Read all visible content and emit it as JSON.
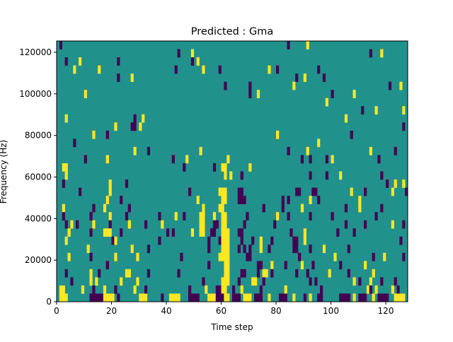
{
  "chart_data": {
    "type": "heatmap",
    "title": "Predicted : Gma",
    "xlabel": "Time step",
    "ylabel": "Frequency (Hz)",
    "xlim": [
      0,
      128
    ],
    "ylim": [
      0,
      125440
    ],
    "n_time": 128,
    "n_freq_bins": 32,
    "bin_hz": 3920,
    "xticks": [
      0,
      20,
      40,
      60,
      80,
      100,
      120
    ],
    "xtick_labels": [
      "0",
      "20",
      "40",
      "60",
      "80",
      "100",
      "120"
    ],
    "yticks": [
      0,
      20000,
      40000,
      60000,
      80000,
      100000,
      120000
    ],
    "ytick_labels": [
      "0",
      "20000",
      "40000",
      "60000",
      "80000",
      "100000",
      "120000"
    ],
    "colormap": {
      "background": "#21918c",
      "high": "#fde725",
      "low": "#440154"
    },
    "background_value": 0,
    "runs_format": "[time_start, time_end, freq_bin, value] value: 1=high, -1=low",
    "runs": [
      [
        1,
        1,
        31,
        -1
      ],
      [
        84,
        84,
        31,
        -1
      ],
      [
        91,
        91,
        31,
        1
      ],
      [
        44,
        44,
        30,
        -1
      ],
      [
        49,
        49,
        30,
        1
      ],
      [
        114,
        114,
        30,
        -1
      ],
      [
        118,
        118,
        30,
        1
      ],
      [
        3,
        3,
        29,
        -1
      ],
      [
        8,
        8,
        29,
        1
      ],
      [
        22,
        22,
        29,
        -1
      ],
      [
        49,
        49,
        29,
        -1
      ],
      [
        51,
        51,
        29,
        1
      ],
      [
        6,
        6,
        28,
        1
      ],
      [
        15,
        15,
        28,
        1
      ],
      [
        43,
        43,
        28,
        -1
      ],
      [
        53,
        53,
        28,
        1
      ],
      [
        59,
        59,
        28,
        -1
      ],
      [
        77,
        77,
        28,
        1
      ],
      [
        80,
        80,
        28,
        -1
      ],
      [
        95,
        95,
        28,
        -1
      ],
      [
        22,
        22,
        27,
        -1
      ],
      [
        27,
        27,
        27,
        1
      ],
      [
        87,
        87,
        27,
        -1
      ],
      [
        90,
        90,
        27,
        1
      ],
      [
        97,
        97,
        27,
        -1
      ],
      [
        61,
        61,
        26,
        -1
      ],
      [
        70,
        70,
        26,
        -1
      ],
      [
        86,
        86,
        26,
        1
      ],
      [
        121,
        121,
        26,
        -1
      ],
      [
        125,
        125,
        26,
        1
      ],
      [
        10,
        10,
        25,
        1
      ],
      [
        70,
        70,
        25,
        -1
      ],
      [
        73,
        73,
        25,
        1
      ],
      [
        100,
        100,
        25,
        -1
      ],
      [
        108,
        108,
        25,
        1
      ],
      [
        98,
        98,
        24,
        1
      ],
      [
        111,
        111,
        23,
        -1
      ],
      [
        116,
        116,
        23,
        1
      ],
      [
        126,
        126,
        23,
        1
      ],
      [
        3,
        3,
        22,
        1
      ],
      [
        28,
        28,
        22,
        -1
      ],
      [
        31,
        31,
        22,
        1
      ],
      [
        105,
        105,
        22,
        1
      ],
      [
        21,
        21,
        21,
        1
      ],
      [
        27,
        28,
        21,
        -1
      ],
      [
        30,
        30,
        21,
        1
      ],
      [
        126,
        126,
        21,
        -1
      ],
      [
        13,
        13,
        20,
        1
      ],
      [
        18,
        18,
        20,
        -1
      ],
      [
        80,
        80,
        20,
        1
      ],
      [
        107,
        107,
        20,
        -1
      ],
      [
        6,
        6,
        19,
        -1
      ],
      [
        95,
        95,
        19,
        1
      ],
      [
        28,
        28,
        18,
        1
      ],
      [
        33,
        33,
        18,
        -1
      ],
      [
        52,
        52,
        18,
        1
      ],
      [
        84,
        84,
        18,
        -1
      ],
      [
        91,
        91,
        18,
        1
      ],
      [
        114,
        114,
        18,
        1
      ],
      [
        123,
        123,
        18,
        -1
      ],
      [
        10,
        10,
        17,
        -1
      ],
      [
        18,
        18,
        17,
        1
      ],
      [
        42,
        42,
        17,
        -1
      ],
      [
        47,
        47,
        17,
        1
      ],
      [
        62,
        62,
        17,
        1
      ],
      [
        89,
        89,
        17,
        -1
      ],
      [
        92,
        92,
        17,
        -1
      ],
      [
        98,
        98,
        17,
        -1
      ],
      [
        100,
        100,
        17,
        1
      ],
      [
        117,
        117,
        17,
        -1
      ],
      [
        2,
        3,
        16,
        1
      ],
      [
        46,
        46,
        16,
        -1
      ],
      [
        60,
        61,
        16,
        1
      ],
      [
        70,
        70,
        16,
        1
      ],
      [
        57,
        57,
        16,
        -1
      ],
      [
        3,
        3,
        15,
        1
      ],
      [
        61,
        61,
        15,
        1
      ],
      [
        63,
        63,
        15,
        1
      ],
      [
        67,
        67,
        15,
        -1
      ],
      [
        92,
        92,
        15,
        -1
      ],
      [
        98,
        98,
        15,
        -1
      ],
      [
        103,
        103,
        15,
        1
      ],
      [
        118,
        118,
        15,
        -1
      ],
      [
        2,
        2,
        14,
        -1
      ],
      [
        19,
        19,
        14,
        1
      ],
      [
        25,
        25,
        14,
        -1
      ],
      [
        120,
        120,
        14,
        -1
      ],
      [
        123,
        123,
        14,
        1
      ],
      [
        126,
        126,
        14,
        1
      ],
      [
        8,
        8,
        13,
        -1
      ],
      [
        19,
        19,
        13,
        1
      ],
      [
        48,
        48,
        13,
        -1
      ],
      [
        59,
        61,
        13,
        1
      ],
      [
        66,
        67,
        13,
        -1
      ],
      [
        87,
        88,
        13,
        -1
      ],
      [
        93,
        94,
        13,
        -1
      ],
      [
        107,
        107,
        13,
        1
      ],
      [
        112,
        112,
        13,
        -1
      ],
      [
        122,
        122,
        13,
        1
      ],
      [
        127,
        127,
        13,
        -1
      ],
      [
        18,
        18,
        12,
        1
      ],
      [
        23,
        23,
        12,
        -1
      ],
      [
        51,
        51,
        12,
        1
      ],
      [
        60,
        61,
        12,
        1
      ],
      [
        66,
        68,
        12,
        -1
      ],
      [
        82,
        82,
        12,
        -1
      ],
      [
        84,
        84,
        12,
        -1
      ],
      [
        92,
        92,
        12,
        1
      ],
      [
        95,
        95,
        12,
        -1
      ],
      [
        110,
        110,
        12,
        1
      ],
      [
        2,
        2,
        11,
        1
      ],
      [
        13,
        13,
        11,
        -1
      ],
      [
        17,
        17,
        11,
        1
      ],
      [
        26,
        26,
        11,
        -1
      ],
      [
        53,
        53,
        11,
        1
      ],
      [
        59,
        60,
        11,
        1
      ],
      [
        75,
        75,
        11,
        -1
      ],
      [
        82,
        82,
        11,
        -1
      ],
      [
        89,
        89,
        11,
        1
      ],
      [
        105,
        105,
        11,
        -1
      ],
      [
        110,
        110,
        11,
        1
      ],
      [
        118,
        118,
        11,
        -1
      ],
      [
        2,
        2,
        10,
        -1
      ],
      [
        12,
        12,
        10,
        -1
      ],
      [
        19,
        19,
        10,
        1
      ],
      [
        25,
        25,
        10,
        -1
      ],
      [
        37,
        37,
        10,
        -1
      ],
      [
        43,
        43,
        10,
        1
      ],
      [
        46,
        46,
        10,
        -1
      ],
      [
        52,
        53,
        10,
        1
      ],
      [
        57,
        57,
        10,
        1
      ],
      [
        60,
        61,
        10,
        1
      ],
      [
        69,
        69,
        10,
        -1
      ],
      [
        80,
        80,
        10,
        1
      ],
      [
        84,
        84,
        10,
        -1
      ],
      [
        92,
        92,
        10,
        -1
      ],
      [
        100,
        100,
        10,
        -1
      ],
      [
        116,
        116,
        10,
        -1
      ],
      [
        3,
        3,
        9,
        -1
      ],
      [
        5,
        5,
        9,
        1
      ],
      [
        7,
        7,
        9,
        -1
      ],
      [
        13,
        13,
        9,
        1
      ],
      [
        19,
        19,
        9,
        -1
      ],
      [
        26,
        26,
        9,
        1
      ],
      [
        32,
        32,
        9,
        -1
      ],
      [
        38,
        38,
        9,
        1
      ],
      [
        52,
        53,
        9,
        1
      ],
      [
        57,
        58,
        9,
        -1
      ],
      [
        60,
        61,
        9,
        1
      ],
      [
        68,
        68,
        9,
        -1
      ],
      [
        79,
        79,
        9,
        -1
      ],
      [
        105,
        105,
        9,
        -1
      ],
      [
        112,
        112,
        9,
        -1
      ],
      [
        122,
        122,
        9,
        1
      ],
      [
        126,
        126,
        9,
        -1
      ],
      [
        4,
        4,
        8,
        1
      ],
      [
        12,
        12,
        8,
        -1
      ],
      [
        17,
        19,
        8,
        1
      ],
      [
        23,
        23,
        8,
        -1
      ],
      [
        40,
        40,
        8,
        -1
      ],
      [
        42,
        42,
        8,
        -1
      ],
      [
        49,
        49,
        8,
        1
      ],
      [
        52,
        53,
        8,
        1
      ],
      [
        56,
        57,
        8,
        -1
      ],
      [
        60,
        62,
        8,
        1
      ],
      [
        66,
        67,
        8,
        -1
      ],
      [
        85,
        85,
        8,
        -1
      ],
      [
        90,
        90,
        8,
        1
      ],
      [
        102,
        102,
        8,
        -1
      ],
      [
        108,
        108,
        8,
        -1
      ],
      [
        3,
        3,
        7,
        1
      ],
      [
        20,
        20,
        7,
        -1
      ],
      [
        21,
        21,
        7,
        1
      ],
      [
        37,
        37,
        7,
        -1
      ],
      [
        55,
        55,
        7,
        -1
      ],
      [
        59,
        59,
        7,
        -1
      ],
      [
        60,
        62,
        7,
        1
      ],
      [
        67,
        67,
        7,
        -1
      ],
      [
        71,
        71,
        7,
        -1
      ],
      [
        74,
        74,
        7,
        1
      ],
      [
        78,
        78,
        7,
        -1
      ],
      [
        86,
        87,
        7,
        -1
      ],
      [
        90,
        90,
        7,
        1
      ],
      [
        125,
        125,
        7,
        -1
      ],
      [
        11,
        11,
        6,
        1
      ],
      [
        27,
        27,
        6,
        1
      ],
      [
        33,
        33,
        6,
        -1
      ],
      [
        55,
        55,
        6,
        -1
      ],
      [
        60,
        62,
        6,
        1
      ],
      [
        66,
        66,
        6,
        -1
      ],
      [
        68,
        68,
        6,
        -1
      ],
      [
        70,
        70,
        6,
        -1
      ],
      [
        74,
        74,
        6,
        1
      ],
      [
        77,
        77,
        6,
        -1
      ],
      [
        86,
        87,
        6,
        -1
      ],
      [
        92,
        92,
        6,
        -1
      ],
      [
        97,
        97,
        6,
        1
      ],
      [
        106,
        106,
        6,
        -1
      ],
      [
        4,
        4,
        5,
        1
      ],
      [
        12,
        12,
        5,
        -1
      ],
      [
        21,
        21,
        5,
        1
      ],
      [
        29,
        29,
        5,
        1
      ],
      [
        45,
        45,
        5,
        -1
      ],
      [
        59,
        62,
        5,
        1
      ],
      [
        69,
        70,
        5,
        -1
      ],
      [
        88,
        88,
        5,
        -1
      ],
      [
        101,
        101,
        5,
        1
      ],
      [
        115,
        115,
        5,
        -1
      ],
      [
        119,
        119,
        5,
        1
      ],
      [
        126,
        126,
        5,
        -1
      ],
      [
        18,
        18,
        4,
        -1
      ],
      [
        55,
        55,
        4,
        -1
      ],
      [
        61,
        62,
        4,
        1
      ],
      [
        73,
        74,
        4,
        -1
      ],
      [
        78,
        78,
        4,
        1
      ],
      [
        83,
        83,
        4,
        -1
      ],
      [
        89,
        89,
        4,
        1
      ],
      [
        93,
        93,
        4,
        -1
      ],
      [
        103,
        103,
        4,
        -1
      ],
      [
        112,
        112,
        4,
        1
      ],
      [
        3,
        3,
        3,
        -1
      ],
      [
        12,
        12,
        3,
        1
      ],
      [
        15,
        15,
        3,
        -1
      ],
      [
        25,
        26,
        3,
        1
      ],
      [
        33,
        33,
        3,
        -1
      ],
      [
        44,
        44,
        3,
        -1
      ],
      [
        61,
        62,
        3,
        1
      ],
      [
        67,
        68,
        3,
        -1
      ],
      [
        73,
        73,
        3,
        -1
      ],
      [
        75,
        76,
        3,
        1
      ],
      [
        78,
        78,
        3,
        -1
      ],
      [
        87,
        87,
        3,
        -1
      ],
      [
        91,
        91,
        3,
        -1
      ],
      [
        99,
        99,
        3,
        1
      ],
      [
        106,
        106,
        3,
        -1
      ],
      [
        115,
        115,
        3,
        1
      ],
      [
        5,
        5,
        2,
        -1
      ],
      [
        12,
        12,
        2,
        1
      ],
      [
        14,
        14,
        2,
        1
      ],
      [
        23,
        23,
        2,
        1
      ],
      [
        29,
        29,
        2,
        1
      ],
      [
        53,
        53,
        2,
        -1
      ],
      [
        60,
        62,
        2,
        1
      ],
      [
        66,
        66,
        2,
        -1
      ],
      [
        71,
        72,
        2,
        1
      ],
      [
        75,
        75,
        2,
        -1
      ],
      [
        92,
        92,
        2,
        -1
      ],
      [
        94,
        94,
        2,
        -1
      ],
      [
        108,
        108,
        2,
        1
      ],
      [
        110,
        110,
        2,
        -1
      ],
      [
        114,
        114,
        2,
        1
      ],
      [
        118,
        118,
        2,
        -1
      ],
      [
        123,
        123,
        2,
        -1
      ],
      [
        1,
        2,
        1,
        1
      ],
      [
        9,
        9,
        1,
        1
      ],
      [
        13,
        13,
        1,
        -1
      ],
      [
        17,
        17,
        1,
        1
      ],
      [
        21,
        21,
        1,
        -1
      ],
      [
        28,
        28,
        1,
        1
      ],
      [
        32,
        32,
        1,
        -1
      ],
      [
        48,
        48,
        1,
        -1
      ],
      [
        54,
        54,
        1,
        1
      ],
      [
        58,
        59,
        1,
        -1
      ],
      [
        60,
        61,
        1,
        1
      ],
      [
        64,
        64,
        1,
        -1
      ],
      [
        67,
        67,
        1,
        1
      ],
      [
        74,
        74,
        1,
        -1
      ],
      [
        83,
        83,
        1,
        1
      ],
      [
        96,
        96,
        1,
        -1
      ],
      [
        113,
        113,
        1,
        1
      ],
      [
        114,
        114,
        1,
        -1
      ],
      [
        116,
        116,
        1,
        1
      ],
      [
        122,
        122,
        1,
        1
      ],
      [
        124,
        124,
        1,
        -1
      ],
      [
        1,
        3,
        0,
        1
      ],
      [
        12,
        16,
        0,
        -1
      ],
      [
        17,
        20,
        0,
        1
      ],
      [
        22,
        22,
        0,
        -1
      ],
      [
        30,
        32,
        0,
        1
      ],
      [
        38,
        38,
        0,
        -1
      ],
      [
        41,
        44,
        0,
        1
      ],
      [
        48,
        51,
        0,
        -1
      ],
      [
        55,
        57,
        0,
        1
      ],
      [
        58,
        60,
        0,
        -1
      ],
      [
        61,
        62,
        0,
        1
      ],
      [
        64,
        66,
        0,
        -1
      ],
      [
        68,
        70,
        0,
        1
      ],
      [
        72,
        74,
        0,
        -1
      ],
      [
        77,
        77,
        0,
        1
      ],
      [
        81,
        83,
        0,
        -1
      ],
      [
        86,
        86,
        0,
        1
      ],
      [
        90,
        90,
        0,
        -1
      ],
      [
        92,
        92,
        0,
        1
      ],
      [
        95,
        96,
        0,
        -1
      ],
      [
        103,
        106,
        0,
        -1
      ],
      [
        108,
        108,
        0,
        1
      ],
      [
        110,
        112,
        0,
        -1
      ],
      [
        115,
        115,
        0,
        1
      ],
      [
        117,
        120,
        0,
        -1
      ],
      [
        123,
        126,
        0,
        1
      ]
    ]
  }
}
